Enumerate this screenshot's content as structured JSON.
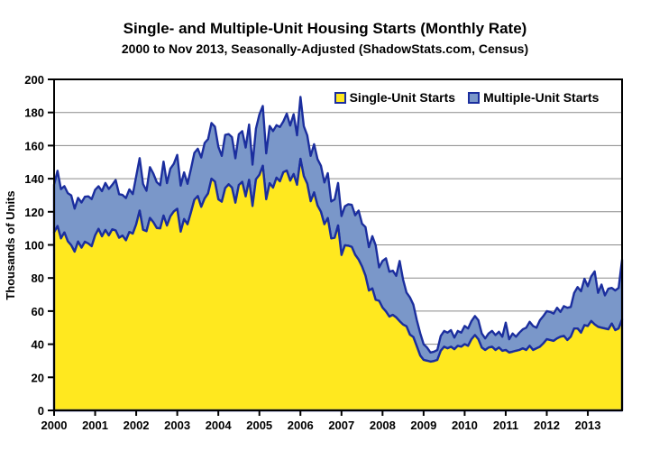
{
  "chart_data": {
    "type": "area",
    "stacked": true,
    "title": "Single- and Multiple-Unit Housing Starts (Monthly Rate)",
    "subtitle": "2000 to Nov 2013, Seasonally-Adjusted (ShadowStats.com, Census)",
    "ylabel": "Thousands of Units",
    "ylim": [
      0,
      200
    ],
    "ytick_step": 20,
    "yticks": [
      "0",
      "20",
      "40",
      "60",
      "80",
      "100",
      "120",
      "140",
      "160",
      "180",
      "200"
    ],
    "xticks": [
      "2000",
      "2001",
      "2002",
      "2003",
      "2004",
      "2005",
      "2006",
      "2007",
      "2008",
      "2009",
      "2010",
      "2011",
      "2012",
      "2013"
    ],
    "x_start": "2000-01",
    "x_end": "2013-11",
    "months_per_xtick": 12,
    "grid": "horizontal",
    "legend_position": "top-right-inside",
    "legend": [
      {
        "label": "Single-Unit Starts",
        "color": "#FFE81F"
      },
      {
        "label": "Multiple-Unit Starts",
        "color": "#7A97C9"
      }
    ],
    "colors": {
      "single_fill": "#FFE81F",
      "multiple_fill": "#7A97C9",
      "series_line": "#1B2E9E",
      "grid_line": "#8A8A8A",
      "axis": "#000000",
      "background": "#FFFFFF"
    },
    "series": [
      {
        "name": "Single-Unit Starts",
        "values": [
          107.5,
          111.4,
          103.9,
          107.5,
          102.2,
          99.8,
          95.9,
          102.0,
          98.3,
          101.9,
          100.8,
          99.2,
          105.7,
          109.7,
          105.2,
          109.0,
          105.7,
          109.4,
          108.7,
          104.3,
          105.6,
          102.8,
          107.8,
          106.8,
          112.5,
          120.7,
          109.1,
          108.3,
          116.3,
          113.7,
          110.2,
          110.0,
          117.7,
          111.7,
          117.3,
          120.2,
          121.8,
          108.0,
          115.6,
          112.5,
          119.6,
          127.3,
          129.5,
          123.0,
          128.0,
          131.1,
          140.0,
          138.2,
          127.5,
          126.1,
          134.3,
          136.6,
          134.6,
          125.5,
          136.2,
          138.1,
          129.3,
          139.3,
          123.5,
          139.6,
          142.3,
          147.8,
          127.6,
          137.3,
          134.6,
          140.6,
          138.4,
          143.9,
          144.9,
          138.8,
          142.8,
          136.3,
          152.0,
          141.5,
          137.0,
          126.4,
          131.7,
          123.8,
          120.0,
          112.5,
          116.2,
          103.9,
          104.3,
          111.7,
          93.9,
          99.8,
          99.5,
          98.8,
          94.0,
          91.1,
          86.9,
          81.4,
          72.4,
          73.7,
          66.8,
          66.2,
          62.1,
          59.8,
          56.7,
          57.7,
          56.2,
          53.9,
          51.9,
          50.8,
          45.8,
          44.3,
          38.8,
          33.2,
          30.5,
          30.0,
          29.5,
          29.8,
          30.5,
          36.0,
          38.5,
          37.5,
          38.5,
          37.0,
          39.0,
          38.5,
          40.0,
          39.0,
          43.0,
          45.5,
          43.0,
          38.0,
          36.5,
          38.0,
          38.5,
          36.5,
          38.0,
          36.0,
          36.5,
          35.0,
          35.5,
          36.0,
          36.5,
          37.5,
          36.5,
          39.0,
          36.5,
          37.5,
          38.5,
          40.5,
          43.0,
          42.5,
          42.0,
          43.5,
          44.5,
          45.0,
          42.5,
          44.5,
          49.5,
          49.5,
          47.0,
          51.5,
          51.0,
          54.0,
          52.0,
          50.5,
          50.0,
          49.5,
          49.0,
          52.5,
          48.5,
          49.5,
          55.0
        ]
      },
      {
        "name": "Multiple-Unit Starts",
        "values": [
          28.8,
          33.4,
          29.8,
          28.0,
          29.1,
          30.1,
          26.0,
          26.4,
          27.3,
          27.2,
          28.5,
          28.5,
          27.6,
          25.7,
          27.3,
          28.4,
          28.1,
          26.9,
          30.5,
          26.3,
          24.6,
          25.5,
          25.7,
          23.9,
          29.0,
          31.7,
          27.7,
          24.4,
          30.7,
          29.4,
          27.7,
          26.1,
          32.6,
          25.6,
          28.8,
          28.8,
          32.6,
          27.8,
          28.2,
          24.4,
          26.3,
          28.3,
          28.6,
          29.8,
          33.6,
          32.8,
          33.6,
          33.2,
          31.8,
          27.7,
          32.2,
          30.3,
          30.5,
          26.8,
          30.6,
          30.6,
          29.5,
          33.4,
          25.0,
          30.6,
          36.4,
          36.1,
          27.7,
          34.5,
          34.2,
          31.7,
          32.8,
          30.7,
          34.4,
          33.3,
          36.1,
          29.9,
          37.4,
          30.2,
          29.2,
          27.4,
          29.1,
          28.0,
          27.8,
          25.2,
          27.1,
          22.3,
          23.2,
          25.7,
          23.5,
          23.5,
          25.1,
          25.4,
          23.9,
          29.6,
          25.9,
          29.4,
          26.2,
          31.6,
          33.0,
          20.2,
          28.2,
          32.1,
          27.1,
          26.7,
          25.1,
          36.4,
          27.2,
          20.4,
          22.5,
          19.6,
          15.8,
          13.5,
          9.5,
          8.0,
          5.5,
          5.7,
          6.0,
          9.0,
          9.5,
          9.5,
          10.0,
          7.0,
          9.0,
          8.5,
          11.0,
          10.5,
          11.0,
          11.5,
          11.5,
          8.5,
          7.0,
          8.5,
          9.5,
          9.0,
          9.5,
          8.5,
          16.5,
          8.0,
          11.0,
          8.5,
          10.5,
          11.5,
          13.5,
          14.5,
          14.5,
          12.5,
          16.0,
          16.5,
          17.0,
          17.0,
          16.5,
          18.5,
          15.0,
          18.0,
          19.5,
          18.0,
          21.5,
          25.0,
          25.0,
          28.0,
          24.0,
          27.0,
          32.0,
          20.5,
          26.0,
          20.0,
          24.5,
          21.5,
          24.0,
          24.5,
          36.0
        ]
      }
    ]
  }
}
